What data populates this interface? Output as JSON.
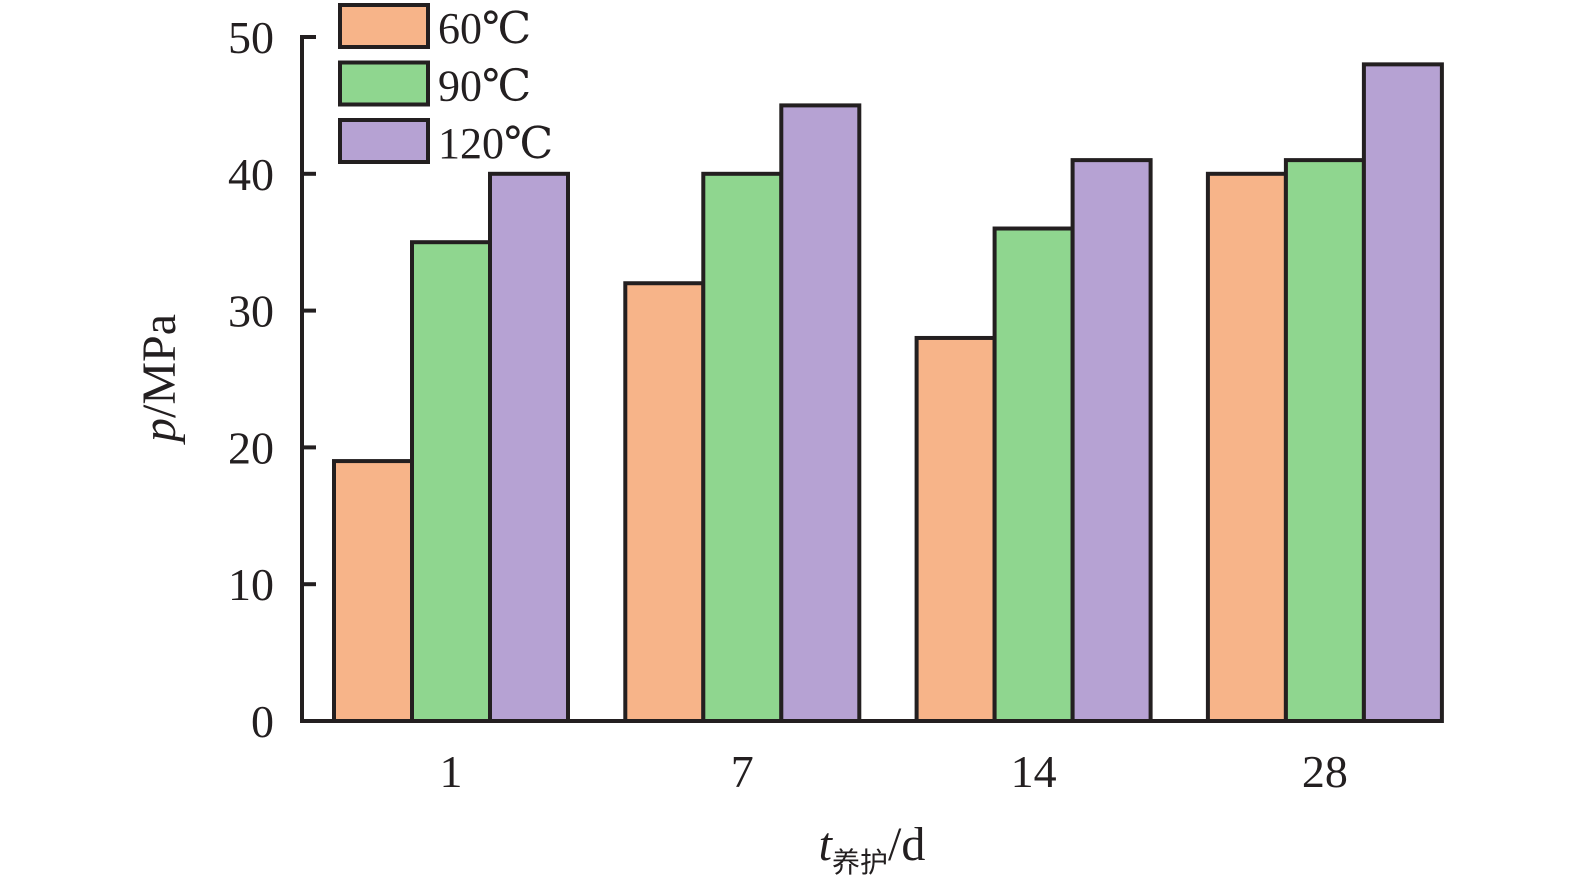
{
  "chart_data": {
    "type": "bar",
    "title": "",
    "xlabel": "t",
    "xlabel_sub": "养护",
    "xlabel_unit": "/d",
    "ylabel": "p",
    "ylabel_unit": "/MPa",
    "categories": [
      "1",
      "7",
      "14",
      "28"
    ],
    "ylim": [
      0,
      50
    ],
    "yticks": [
      "0",
      "10",
      "20",
      "30",
      "40",
      "50"
    ],
    "grid": false,
    "legend_position": "top-left",
    "series": [
      {
        "name": "60℃",
        "color": "#f7b489",
        "values": [
          19,
          32,
          28,
          40
        ]
      },
      {
        "name": "90℃",
        "color": "#8fd68f",
        "values": [
          35,
          40,
          36,
          41
        ]
      },
      {
        "name": "120℃",
        "color": "#b6a2d3",
        "values": [
          40,
          45,
          41,
          48
        ]
      }
    ]
  }
}
